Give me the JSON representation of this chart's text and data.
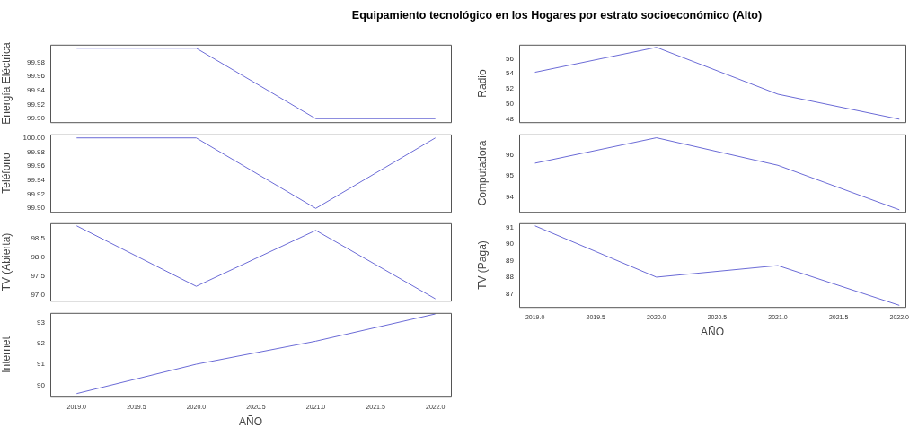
{
  "chart_data": [
    {
      "type": "line",
      "title": "Equipamiento tecnológico en los Hogares por estrato socioeconómico (Alto)",
      "ylabel": "Energía Eléctrica",
      "x": [
        2019,
        2020,
        2021,
        2022
      ],
      "series": [
        {
          "color": "#6b6bd6",
          "values": [
            100.0,
            100.0,
            99.9,
            99.9
          ]
        }
      ],
      "xlim": [
        2018.78,
        2022.13
      ],
      "ylim": [
        99.895,
        100.005
      ],
      "yticks": [
        {
          "value": 99.9,
          "label": "99.90"
        },
        {
          "value": 99.92,
          "label": "99.92"
        },
        {
          "value": 99.94,
          "label": "99.94"
        },
        {
          "value": 99.96,
          "label": "99.96"
        },
        {
          "value": 99.98,
          "label": "99.98"
        }
      ],
      "tick_labels": "y"
    },
    {
      "type": "line",
      "ylabel": "Teléfono",
      "x": [
        2019,
        2020,
        2021,
        2022
      ],
      "series": [
        {
          "color": "#6b6bd6",
          "values": [
            100.0,
            100.0,
            99.9,
            100.0
          ]
        }
      ],
      "xlim": [
        2018.78,
        2022.13
      ],
      "ylim": [
        99.895,
        100.005
      ],
      "yticks": [
        {
          "value": 99.9,
          "label": "99.90"
        },
        {
          "value": 99.92,
          "label": "99.92"
        },
        {
          "value": 99.94,
          "label": "99.94"
        },
        {
          "value": 99.96,
          "label": "99.96"
        },
        {
          "value": 99.98,
          "label": "99.98"
        },
        {
          "value": 100,
          "label": "100.00"
        }
      ],
      "tick_labels": "y"
    },
    {
      "type": "line",
      "ylabel": "TV (Abierta)",
      "x": [
        2019,
        2020,
        2021,
        2022
      ],
      "series": [
        {
          "color": "#6b6bd6",
          "values": [
            98.83,
            97.23,
            98.71,
            96.9
          ]
        }
      ],
      "xlim": [
        2018.78,
        2022.13
      ],
      "ylim": [
        96.85,
        98.9
      ],
      "yticks": [
        {
          "value": 97,
          "label": "97.0"
        },
        {
          "value": 97.5,
          "label": "97.5"
        },
        {
          "value": 98,
          "label": "98.0"
        },
        {
          "value": 98.5,
          "label": "98.5"
        }
      ],
      "tick_labels": "y"
    },
    {
      "type": "line",
      "ylabel": "Internet",
      "xlabel": "AÑO",
      "x": [
        2019,
        2020,
        2021,
        2022
      ],
      "series": [
        {
          "color": "#6b6bd6",
          "values": [
            89.6,
            91.0,
            92.1,
            93.4
          ]
        }
      ],
      "xlim": [
        2018.78,
        2022.13
      ],
      "xticks": [
        {
          "value": 2019,
          "label": "2019.0"
        },
        {
          "value": 2019.5,
          "label": "2019.5"
        },
        {
          "value": 2020,
          "label": "2020.0"
        },
        {
          "value": 2020.5,
          "label": "2020.5"
        },
        {
          "value": 2021,
          "label": "2021.0"
        },
        {
          "value": 2021.5,
          "label": "2021.5"
        },
        {
          "value": 2022,
          "label": "2022.0"
        }
      ],
      "ylim": [
        89.45,
        93.45
      ],
      "yticks": [
        90,
        91,
        92,
        93
      ]
    },
    {
      "type": "line",
      "ylabel": "Radio",
      "x": [
        2019,
        2020,
        2021,
        2022
      ],
      "series": [
        {
          "color": "#6b6bd6",
          "values": [
            54.2,
            57.5,
            51.3,
            48.0
          ]
        }
      ],
      "xlim": [
        2018.87,
        2022.05
      ],
      "ylim": [
        47.6,
        57.85
      ],
      "yticks": [
        48,
        50,
        52,
        54,
        56
      ],
      "tick_labels": "y"
    },
    {
      "type": "line",
      "ylabel": "Computadora",
      "x": [
        2019,
        2020,
        2021,
        2022
      ],
      "series": [
        {
          "color": "#6b6bd6",
          "values": [
            95.6,
            96.8,
            95.5,
            93.4
          ]
        }
      ],
      "xlim": [
        2018.87,
        2022.05
      ],
      "ylim": [
        93.3,
        96.96
      ],
      "yticks": [
        94,
        95,
        96
      ],
      "tick_labels": "y"
    },
    {
      "type": "line",
      "ylabel": "TV (Paga)",
      "xlabel": "AÑO",
      "x": [
        2019,
        2020,
        2021,
        2022
      ],
      "series": [
        {
          "color": "#6b6bd6",
          "values": [
            91.1,
            88.0,
            88.7,
            86.3
          ]
        }
      ],
      "xlim": [
        2018.87,
        2022.05
      ],
      "xticks": [
        {
          "value": 2019,
          "label": "2019.0"
        },
        {
          "value": 2019.5,
          "label": "2019.5"
        },
        {
          "value": 2020,
          "label": "2020.0"
        },
        {
          "value": 2020.5,
          "label": "2020.5"
        },
        {
          "value": 2021,
          "label": "2021.0"
        },
        {
          "value": 2021.5,
          "label": "2021.5"
        },
        {
          "value": 2022,
          "label": "2022.0"
        }
      ],
      "ylim": [
        86.2,
        91.26
      ],
      "yticks": [
        87,
        88,
        89,
        90,
        91
      ]
    }
  ]
}
